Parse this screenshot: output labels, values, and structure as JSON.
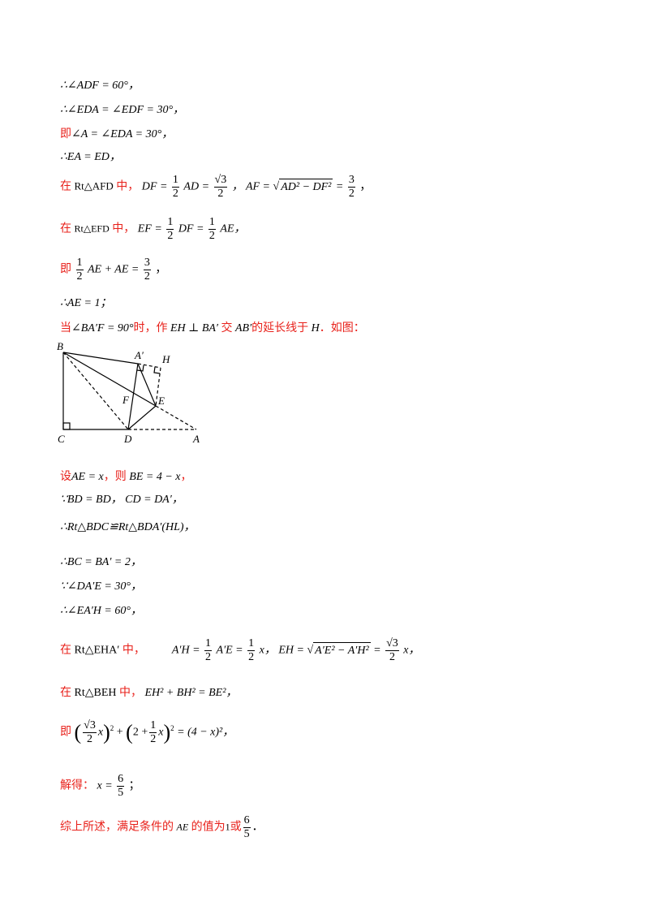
{
  "lines": {
    "l1": "∴∠ADF = 60°，",
    "l2": "∴∠EDA = ∠EDF = 30°，",
    "l3_pre": "即",
    "l3": "∠A = ∠EDA = 30°，",
    "l4": "∴EA = ED，",
    "l5_pre": "在",
    "l5_tri": "Rt△AFD",
    "l5_mid": "中，",
    "l5_a": "DF =",
    "l5_half": "1",
    "l5_half_den": "2",
    "l5_b": "AD =",
    "l5_sq": "√3",
    "l5_sq_den": "2",
    "l5_c": "，  AF =",
    "l5_rad": "AD² − DF²",
    "l5_d": "=",
    "l5_n2": "3",
    "l5_d2": "2",
    "l5_e": "，",
    "l6_pre": "在",
    "l6_tri": "Rt△EFD",
    "l6_mid": "中，",
    "l6_a": "EF =",
    "l6_n1": "1",
    "l6_d1": "2",
    "l6_b": "DF =",
    "l6_n2": "1",
    "l6_d2": "2",
    "l6_c": "AE，",
    "l7_pre": "即",
    "l7_n1": "1",
    "l7_d1": "2",
    "l7_a": "AE + AE =",
    "l7_n2": "3",
    "l7_d2": "2",
    "l7_b": "，",
    "l8": "∴AE = 1；",
    "l9_a": "当",
    "l9_b": "∠BA′F = 90°",
    "l9_c": "时，作",
    "l9_d": "EH ⊥ BA′",
    "l9_e": "交",
    "l9_f": "AB′",
    "l9_g": "的延长线于",
    "l9_h": "H",
    "l9_i": "．如图：",
    "l10_a": "设",
    "l10_b": "AE = x",
    "l10_c": "，则",
    "l10_d": "BE = 4 − x",
    "l10_e": "，",
    "l11": "∵BD = BD，  CD = DA′，",
    "l12": "∴Rt△BDC≌Rt△BDA′(HL)，",
    "l13": "∴BC = BA′ = 2，",
    "l14": "∵∠DA′E = 30°，",
    "l15": "∴∠EA′H = 60°，",
    "l16_pre": "在",
    "l16_tri": "Rt△EHA′",
    "l16_mid": "中，",
    "l16_a": "A′H =",
    "l16_n1": "1",
    "l16_d1": "2",
    "l16_b": "A′E =",
    "l16_n2": "1",
    "l16_d2": "2",
    "l16_c": "x，  EH =",
    "l16_rad": "A′E² − A′H²",
    "l16_d": "=",
    "l16_n3": "√3",
    "l16_d3": "2",
    "l16_e": "x，",
    "l17_pre": "在",
    "l17_tri": "Rt△BEH",
    "l17_mid": "中，",
    "l17_a": "EH² + BH² = BE²，",
    "l18_pre": "即",
    "l18_n1": "√3",
    "l18_d1": "2",
    "l18_a": "x",
    "l18_b": "+",
    "l18_c": "2 +",
    "l18_n2": "1",
    "l18_d2": "2",
    "l18_d": "x",
    "l18_e": "= (4 − x)²，",
    "l19_pre": "解得：",
    "l19_a": "x =",
    "l19_n": "6",
    "l19_d": "5",
    "l19_b": "；",
    "l20_a": "综上所述，满足条件的",
    "l20_b": "AE",
    "l20_c": "的值为",
    "l20_d": "1",
    "l20_e": "或",
    "l20_n": "6",
    "l20_d2": "5",
    "l20_f": "．"
  },
  "figure": {
    "labels": {
      "B": "B",
      "A1": "A′",
      "H": "H",
      "F": "F",
      "E": "E",
      "C": "C",
      "D": "D",
      "A": "A"
    }
  }
}
